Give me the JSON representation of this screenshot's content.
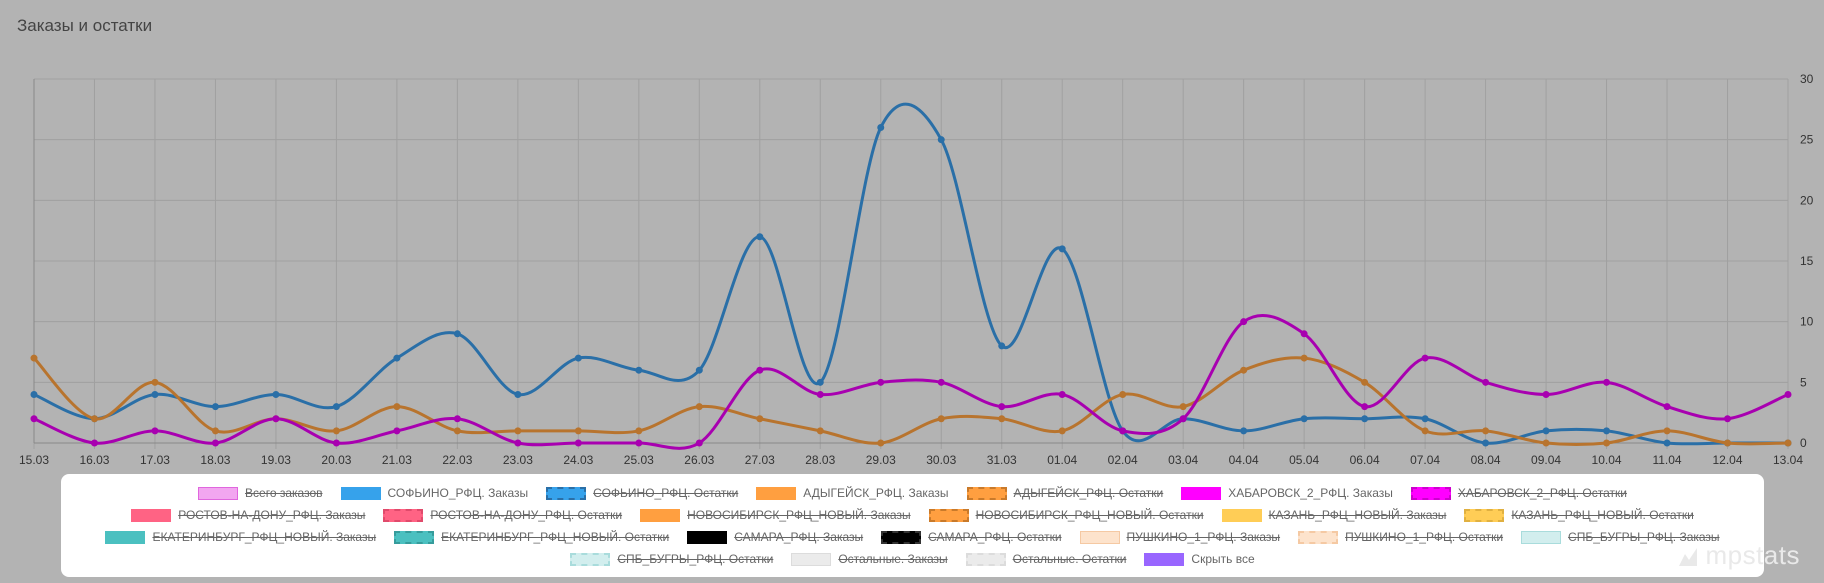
{
  "title": "Заказы и остатки",
  "brand": "mpstats",
  "chart_data": {
    "type": "line",
    "title": "Заказы и остатки",
    "categories": [
      "15.03",
      "16.03",
      "17.03",
      "18.03",
      "19.03",
      "20.03",
      "21.03",
      "22.03",
      "23.03",
      "24.03",
      "25.03",
      "26.03",
      "27.03",
      "28.03",
      "29.03",
      "30.03",
      "31.03",
      "01.04",
      "02.04",
      "03.04",
      "04.04",
      "05.04",
      "06.04",
      "07.04",
      "08.04",
      "09.04",
      "10.04",
      "11.04",
      "12.04",
      "13.04"
    ],
    "y_ticks": [
      "0",
      "5",
      "10",
      "15",
      "20",
      "25",
      "30"
    ],
    "ylim": [
      0,
      30
    ],
    "grid": true,
    "series": [
      {
        "name": "СОФЬИНО_РФЦ. Заказы",
        "color": "#2a6fa7",
        "values": [
          4,
          2,
          4,
          3,
          4,
          3,
          7,
          9,
          4,
          7,
          6,
          6,
          17,
          5,
          26,
          25,
          8,
          16,
          1,
          2,
          1,
          2,
          2,
          2,
          0,
          1,
          1,
          0,
          0,
          0
        ]
      },
      {
        "name": "АДЫГЕЙСК_РФЦ. Заказы",
        "color": "#b8742e",
        "values": [
          7,
          2,
          5,
          1,
          2,
          1,
          3,
          1,
          1,
          1,
          1,
          3,
          2,
          1,
          0,
          2,
          2,
          1,
          4,
          3,
          6,
          7,
          5,
          1,
          1,
          0,
          0,
          1,
          0,
          0
        ]
      },
      {
        "name": "ХАБАРОВСК_2_РФЦ. Заказы",
        "color": "#a800b0",
        "values": [
          2,
          0,
          1,
          0,
          2,
          0,
          1,
          2,
          0,
          0,
          0,
          0,
          6,
          4,
          5,
          5,
          3,
          4,
          1,
          2,
          10,
          9,
          3,
          7,
          5,
          4,
          5,
          3,
          2,
          4
        ]
      }
    ],
    "legend": [
      {
        "label": "Всего заказов",
        "color": "#f2a6f0",
        "border": "#e066de",
        "dashed": false,
        "hidden": true
      },
      {
        "label": "СОФЬИНО_РФЦ. Заказы",
        "color": "#36a2eb",
        "border": "#36a2eb",
        "dashed": false,
        "hidden": false
      },
      {
        "label": "СОФЬИНО_РФЦ. Остатки",
        "color": "#36a2eb",
        "border": "#2a6fa7",
        "dashed": true,
        "hidden": true
      },
      {
        "label": "АДЫГЕЙСК_РФЦ. Заказы",
        "color": "#ff9f40",
        "border": "#ff9f40",
        "dashed": false,
        "hidden": false
      },
      {
        "label": "АДЫГЕЙСК_РФЦ. Остатки",
        "color": "#ff9f40",
        "border": "#c97a2a",
        "dashed": true,
        "hidden": true
      },
      {
        "label": "ХАБАРОВСК_2_РФЦ. Заказы",
        "color": "#ff00ff",
        "border": "#ff00ff",
        "dashed": false,
        "hidden": false
      },
      {
        "label": "ХАБАРОВСК_2_РФЦ. Остатки",
        "color": "#ff00ff",
        "border": "#cc00cc",
        "dashed": true,
        "hidden": true
      },
      {
        "label": "РОСТОВ-НА-ДОНУ_РФЦ. Заказы",
        "color": "#ff6384",
        "border": "#ff6384",
        "dashed": false,
        "hidden": true
      },
      {
        "label": "РОСТОВ-НА-ДОНУ_РФЦ. Остатки",
        "color": "#ff6384",
        "border": "#e04a6b",
        "dashed": true,
        "hidden": true
      },
      {
        "label": "НОВОСИБИРСК_РФЦ_НОВЫЙ. Заказы",
        "color": "#ff9f40",
        "border": "#ff9f40",
        "dashed": false,
        "hidden": true
      },
      {
        "label": "НОВОСИБИРСК_РФЦ_НОВЫЙ. Остатки",
        "color": "#ff9f40",
        "border": "#c97a2a",
        "dashed": true,
        "hidden": true
      },
      {
        "label": "КАЗАНЬ_РФЦ_НОВЫЙ. Заказы",
        "color": "#ffcd56",
        "border": "#ffcd56",
        "dashed": false,
        "hidden": true
      },
      {
        "label": "КАЗАНЬ_РФЦ_НОВЫЙ. Остатки",
        "color": "#ffcd56",
        "border": "#e0b040",
        "dashed": true,
        "hidden": true
      },
      {
        "label": "ЕКАТЕРИНБУРГ_РФЦ_НОВЫЙ. Заказы",
        "color": "#4bc0c0",
        "border": "#4bc0c0",
        "dashed": false,
        "hidden": true
      },
      {
        "label": "ЕКАТЕРИНБУРГ_РФЦ_НОВЫЙ. Остатки",
        "color": "#4bc0c0",
        "border": "#369c9c",
        "dashed": true,
        "hidden": true
      },
      {
        "label": "САМАРА_РФЦ. Заказы",
        "color": "#000000",
        "border": "#000000",
        "dashed": false,
        "hidden": true
      },
      {
        "label": "САМАРА_РФЦ. Остатки",
        "color": "#000000",
        "border": "#333333",
        "dashed": true,
        "hidden": true
      },
      {
        "label": "ПУШКИНО_1_РФЦ. Заказы",
        "color": "#fde3cc",
        "border": "#f5c9a3",
        "dashed": false,
        "hidden": true
      },
      {
        "label": "ПУШКИНО_1_РФЦ. Остатки",
        "color": "#fde3cc",
        "border": "#f5c9a3",
        "dashed": true,
        "hidden": true
      },
      {
        "label": "СПБ_БУГРЫ_РФЦ. Заказы",
        "color": "#d2eeee",
        "border": "#a9dcdc",
        "dashed": false,
        "hidden": true
      },
      {
        "label": "СПБ_БУГРЫ_РФЦ. Остатки",
        "color": "#d2eeee",
        "border": "#a9dcdc",
        "dashed": true,
        "hidden": true
      },
      {
        "label": "Остальные. Заказы",
        "color": "#ebebeb",
        "border": "#dcdcdc",
        "dashed": false,
        "hidden": true
      },
      {
        "label": "Остальные. Остатки",
        "color": "#ebebeb",
        "border": "#dcdcdc",
        "dashed": true,
        "hidden": true
      },
      {
        "label": "Скрыть все",
        "color": "#9966ff",
        "border": "#9966ff",
        "dashed": false,
        "hidden": false
      }
    ]
  }
}
